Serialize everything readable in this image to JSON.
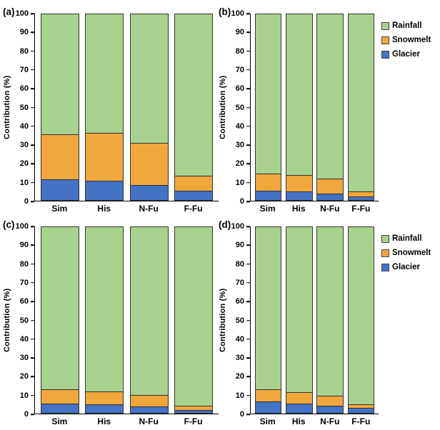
{
  "figure": {
    "ylabel": "Contribution (%)",
    "yticks": [
      100,
      90,
      80,
      70,
      60,
      50,
      40,
      30,
      20,
      10,
      0
    ],
    "ylim": [
      0,
      100
    ],
    "legend": [
      "Rainfall",
      "Snowmelt",
      "Glacier"
    ],
    "legend_position": "right",
    "colors": {
      "Rainfall": "#A9D18E",
      "Snowmelt": "#F0A73C",
      "Glacier": "#4472C4"
    },
    "bar_border_color": "#333333",
    "axis_color": "#000000"
  },
  "chart_data": [
    {
      "type": "bar",
      "stacked": true,
      "panel": "(a)",
      "categories": [
        "Sim",
        "His",
        "N-Fu",
        "F-Fu"
      ],
      "series": [
        {
          "name": "Glacier",
          "values": [
            11,
            10.5,
            8,
            5
          ]
        },
        {
          "name": "Snowmelt",
          "values": [
            24,
            25.5,
            22.5,
            8
          ]
        },
        {
          "name": "Rainfall",
          "values": [
            65,
            64,
            69.5,
            87
          ]
        }
      ],
      "ylabel": "Contribution (%)",
      "ylim": [
        0,
        100
      ]
    },
    {
      "type": "bar",
      "stacked": true,
      "panel": "(b)",
      "categories": [
        "Sim",
        "His",
        "N-Fu",
        "F-Fu"
      ],
      "series": [
        {
          "name": "Glacier",
          "values": [
            5,
            4.5,
            3.5,
            2
          ]
        },
        {
          "name": "Snowmelt",
          "values": [
            9,
            9,
            8,
            2.5
          ]
        },
        {
          "name": "Rainfall",
          "values": [
            86,
            86.5,
            88.5,
            95.5
          ]
        }
      ],
      "ylabel": "Contribution (%)",
      "ylim": [
        0,
        100
      ]
    },
    {
      "type": "bar",
      "stacked": true,
      "panel": "(c)",
      "categories": [
        "Sim",
        "His",
        "N-Fu",
        "F-Fu"
      ],
      "series": [
        {
          "name": "Glacier",
          "values": [
            5,
            4.5,
            3.5,
            1.5
          ]
        },
        {
          "name": "Snowmelt",
          "values": [
            7.5,
            7,
            6,
            2.5
          ]
        },
        {
          "name": "Rainfall",
          "values": [
            87.5,
            88.5,
            90.5,
            96
          ]
        }
      ],
      "ylabel": "Contribution (%)",
      "ylim": [
        0,
        100
      ]
    },
    {
      "type": "bar",
      "stacked": true,
      "panel": "(d)",
      "categories": [
        "Sim",
        "His",
        "N-Fu",
        "F-Fu"
      ],
      "series": [
        {
          "name": "Glacier",
          "values": [
            6,
            5,
            4,
            2.5
          ]
        },
        {
          "name": "Snowmelt",
          "values": [
            6.5,
            6,
            5,
            2
          ]
        },
        {
          "name": "Rainfall",
          "values": [
            87.5,
            89,
            91,
            95.5
          ]
        }
      ],
      "ylabel": "Contribution (%)",
      "ylim": [
        0,
        100
      ]
    }
  ]
}
